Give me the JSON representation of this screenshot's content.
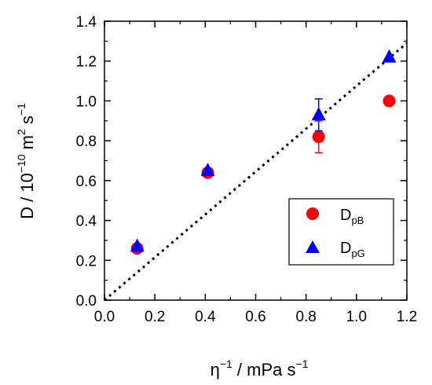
{
  "chart_data": {
    "type": "scatter",
    "title": "",
    "xlabel": {
      "base": "η",
      "sup": "−1",
      "rest": " / mPa s",
      "sup2": "−1"
    },
    "ylabel": {
      "base": "D / 10",
      "sup": "−10",
      "rest": " m",
      "sup2": "2",
      "rest2": " s",
      "sup3": "−1"
    },
    "xlim": [
      0.0,
      1.2
    ],
    "ylim": [
      0.0,
      1.4
    ],
    "xticks": [
      "0.0",
      "0.2",
      "0.4",
      "0.6",
      "0.8",
      "1.0",
      "1.2"
    ],
    "yticks": [
      "0.0",
      "0.2",
      "0.4",
      "0.6",
      "0.8",
      "1.0",
      "1.2",
      "1.4"
    ],
    "grid": false,
    "legend_position": "bottom-right",
    "series": [
      {
        "name": "D_pB",
        "legend_main": "D",
        "legend_sub": "pB",
        "marker": "circle",
        "color": "#ff0000",
        "points": [
          {
            "x": 0.13,
            "y": 0.26,
            "err": 0.02
          },
          {
            "x": 0.41,
            "y": 0.64,
            "err": 0.0
          },
          {
            "x": 0.85,
            "y": 0.82,
            "err": 0.08
          },
          {
            "x": 1.13,
            "y": 1.0,
            "err": 0.0
          }
        ]
      },
      {
        "name": "D_pG",
        "legend_main": "D",
        "legend_sub": "pG",
        "marker": "triangle",
        "color": "#0000ff",
        "points": [
          {
            "x": 0.13,
            "y": 0.27,
            "err": 0.0
          },
          {
            "x": 0.41,
            "y": 0.65,
            "err": 0.0
          },
          {
            "x": 0.85,
            "y": 0.93,
            "err": 0.08
          },
          {
            "x": 1.13,
            "y": 1.22,
            "err": 0.0
          }
        ]
      }
    ],
    "fit_line": {
      "style": "dotted",
      "color": "#000000",
      "from": [
        0.0,
        0.0
      ],
      "to": [
        1.2,
        1.29
      ]
    }
  }
}
